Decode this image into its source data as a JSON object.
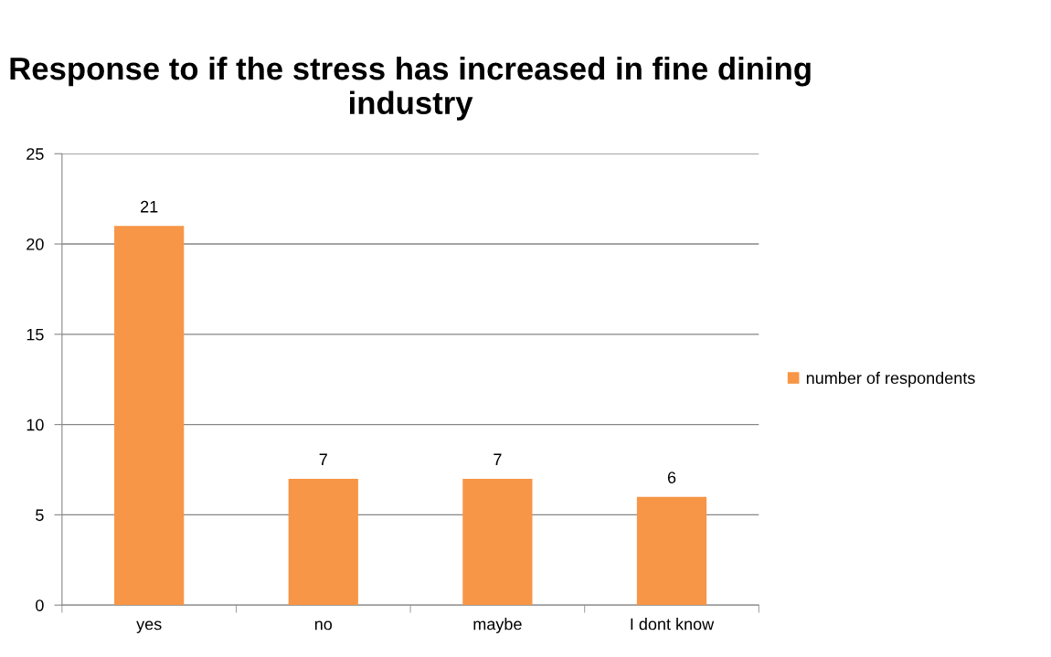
{
  "chart_data": {
    "type": "bar",
    "title": "Response to if the stress has increased in fine dining industry",
    "categories": [
      "yes",
      "no",
      "maybe",
      "I dont know"
    ],
    "series": [
      {
        "name": "number of respondents",
        "color": "#f79646",
        "values": [
          21,
          7,
          7,
          6
        ]
      }
    ],
    "ylim": [
      0,
      25
    ],
    "yticks": [
      0,
      5,
      10,
      15,
      20,
      25
    ],
    "grid": "y",
    "legend": "right",
    "data_labels": true
  }
}
